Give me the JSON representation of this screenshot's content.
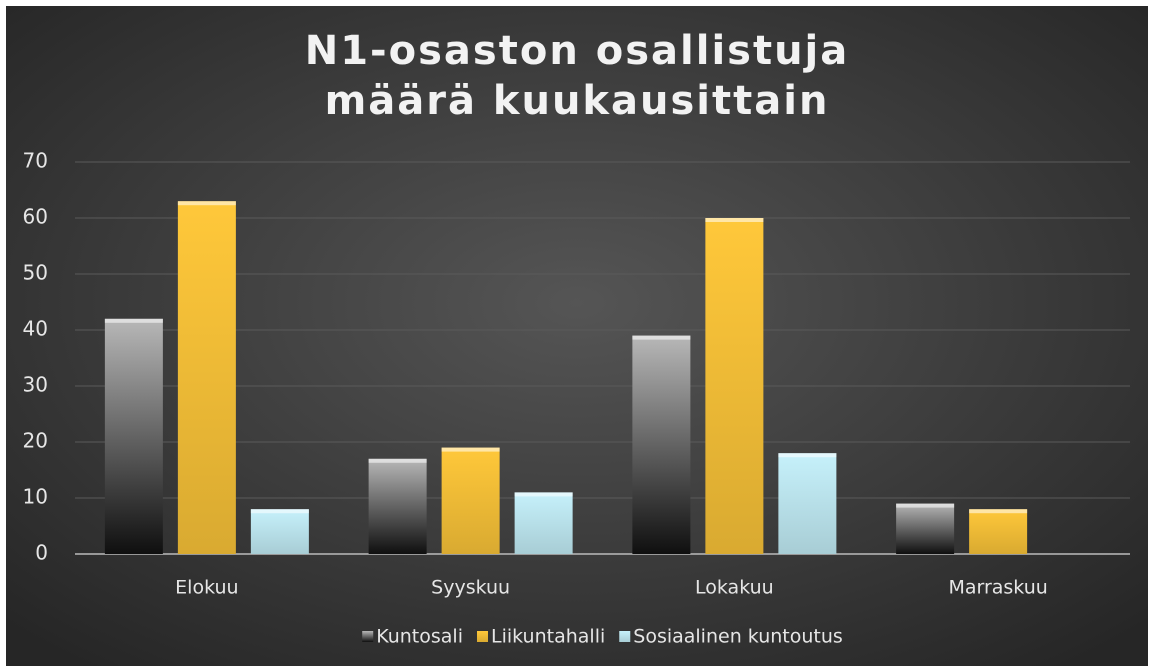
{
  "chart_data": {
    "type": "bar",
    "title": "N1-osaston osallistuja määrä kuukausittain",
    "categories": [
      "Elokuu",
      "Syyskuu",
      "Lokakuu",
      "Marraskuu"
    ],
    "series": [
      {
        "name": "Kuntosali",
        "color": "#b8b8b8",
        "values": [
          42,
          17,
          39,
          9
        ]
      },
      {
        "name": "Liikuntahalli",
        "color": "#ffc83a",
        "values": [
          63,
          19,
          60,
          8
        ]
      },
      {
        "name": "Sosiaalinen kuntoutus",
        "color": "#c6f1fb",
        "values": [
          8,
          11,
          18,
          null
        ]
      }
    ],
    "ylim": [
      0,
      70
    ],
    "yticks": [
      0,
      10,
      20,
      30,
      40,
      50,
      60,
      70
    ],
    "grid": true,
    "legend": "bottom"
  }
}
